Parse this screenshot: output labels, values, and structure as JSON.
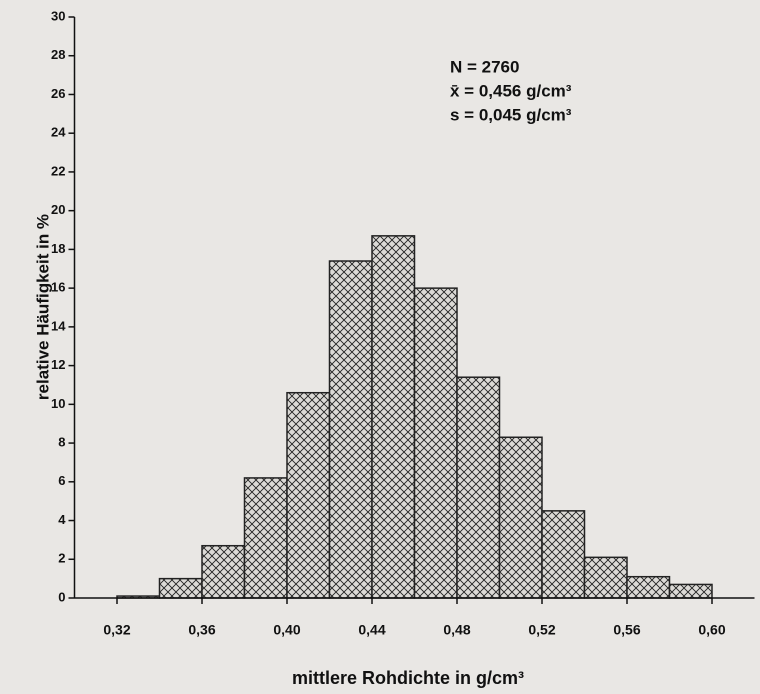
{
  "chart_data": {
    "type": "histogram",
    "xlabel": "mittlere Rohdichte in g/cm³",
    "ylabel": "relative Häufigkeit in %",
    "annotations": [
      "N = 2760",
      "x̄ = 0,456 g/cm³",
      "s = 0,045 g/cm³"
    ],
    "bins": [
      0.32,
      0.34,
      0.36,
      0.38,
      0.4,
      0.42,
      0.44,
      0.46,
      0.48,
      0.5,
      0.52,
      0.54,
      0.56,
      0.58,
      0.6
    ],
    "values": [
      0.1,
      1.0,
      2.7,
      6.2,
      10.6,
      17.4,
      18.7,
      16.0,
      11.4,
      8.3,
      4.5,
      2.1,
      1.1,
      0.7
    ],
    "color": "#222222",
    "xlim": [
      0.3,
      0.62
    ],
    "xticks": [
      {
        "value": 0.32,
        "label": "0,32"
      },
      {
        "value": 0.36,
        "label": "0,36"
      },
      {
        "value": 0.4,
        "label": "0,40"
      },
      {
        "value": 0.44,
        "label": "0,44"
      },
      {
        "value": 0.48,
        "label": "0,48"
      },
      {
        "value": 0.52,
        "label": "0,52"
      },
      {
        "value": 0.56,
        "label": "0,56"
      },
      {
        "value": 0.6,
        "label": "0,60"
      }
    ],
    "ylim": [
      0,
      30
    ],
    "yticks": [
      0,
      2,
      4,
      6,
      8,
      10,
      12,
      14,
      16,
      18,
      20,
      22,
      24,
      26,
      28,
      30
    ]
  }
}
